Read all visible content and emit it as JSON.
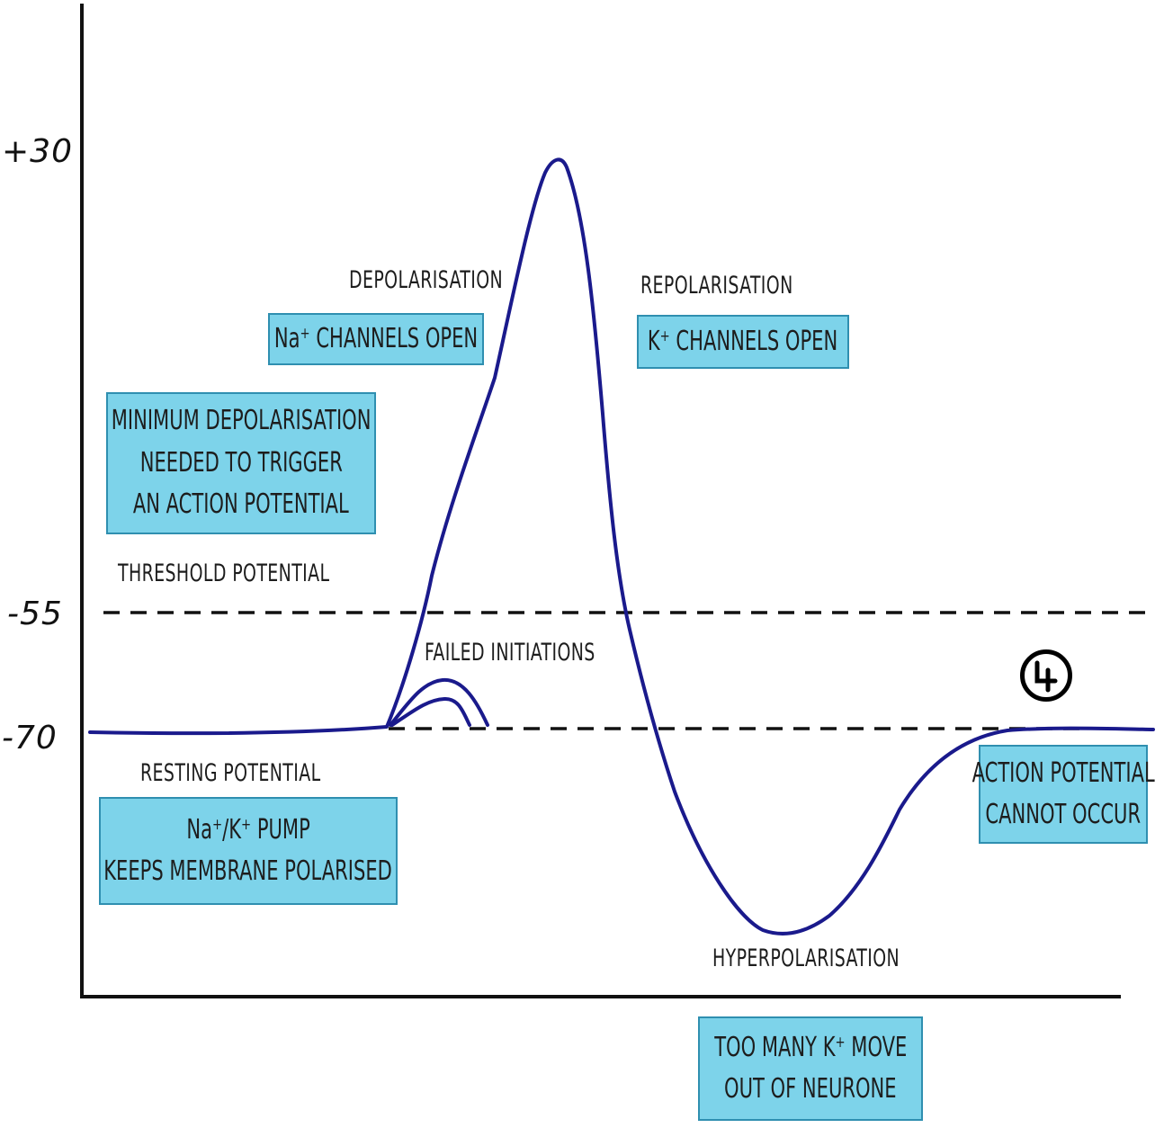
{
  "axis": {
    "ticks": [
      "+30",
      "-55",
      "-70"
    ]
  },
  "labels": {
    "depolarisation": "DEPOLARISATION",
    "repolarisation": "REPOLARISATION",
    "threshold": "THRESHOLD POTENTIAL",
    "failed": "FAILED  INITIATIONS",
    "resting": "RESTING POTENTIAL",
    "hyperpolarisation": "HYPERPOLARISATION"
  },
  "boxes": {
    "na_channels": [
      "Na⁺ CHANNELS OPEN"
    ],
    "k_channels": [
      "K⁺ CHANNELS OPEN"
    ],
    "minimum": [
      "MINIMUM DEPOLARISATION",
      "NEEDED TO TRIGGER",
      "AN ACTION POTENTIAL"
    ],
    "pump": [
      "Na⁺/K⁺ PUMP",
      "KEEPS MEMBRANE POLARISED"
    ],
    "cannot_occur": [
      "ACTION POTENTIAL",
      "CANNOT OCCUR"
    ],
    "too_many": [
      "TOO MANY K⁺ MOVE",
      "OUT OF NEURONE"
    ]
  },
  "colors": {
    "curve": "#1a1a8c",
    "box_fill": "#7dd3ea",
    "box_border": "#2f8fb0",
    "axis": "#111111"
  },
  "logo_icon": "circle-logo-icon"
}
